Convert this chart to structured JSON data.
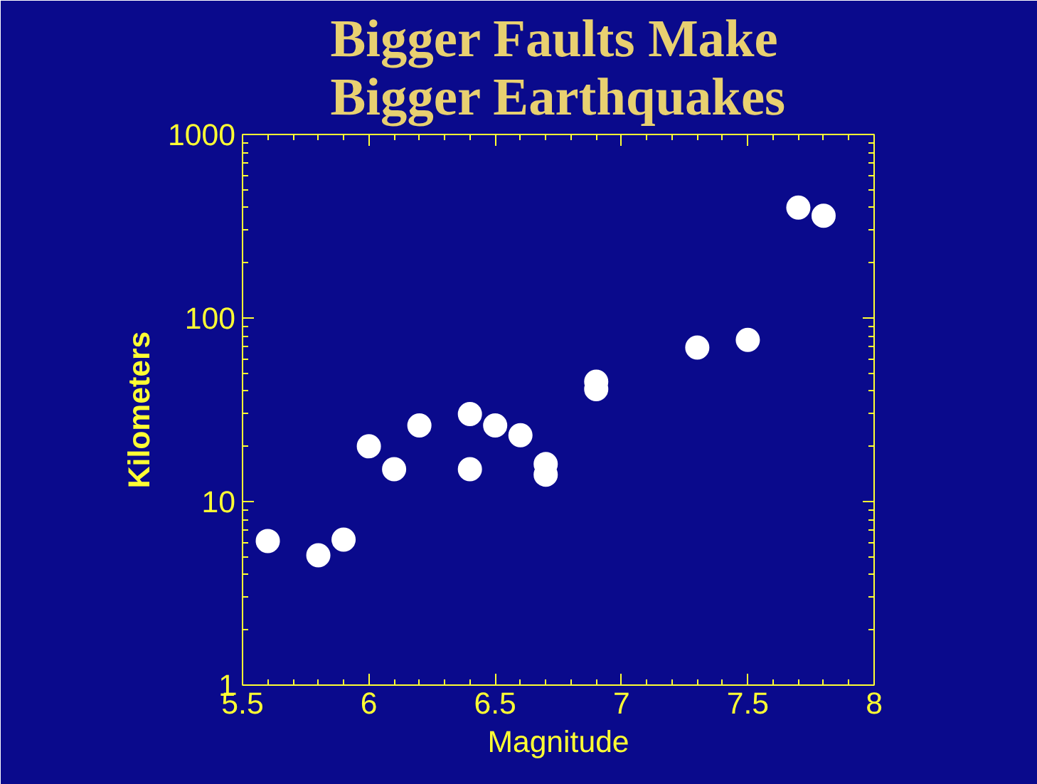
{
  "chart_data": {
    "type": "scatter",
    "title": "Bigger Faults Make Bigger Earthquakes",
    "xlabel": "Magnitude",
    "ylabel": "Kilometers",
    "x": [
      5.6,
      5.8,
      5.9,
      6.0,
      6.1,
      6.2,
      6.4,
      6.4,
      6.5,
      6.6,
      6.7,
      6.7,
      6.9,
      6.9,
      7.3,
      7.5,
      7.7,
      7.8
    ],
    "series": [
      {
        "color": "#ffffff",
        "values": [
          6.1,
          5.1,
          6.2,
          20,
          15,
          26,
          30,
          15,
          26,
          23,
          16,
          14,
          45,
          41,
          69,
          76,
          400,
          361
        ]
      }
    ],
    "marker": "circle",
    "log": "y",
    "xlim": [
      5.5,
      8
    ],
    "ylim": [
      1,
      1000
    ],
    "xticks": [
      5.5,
      6,
      6.5,
      7,
      7.5,
      8
    ],
    "yticks": [
      1,
      10,
      100,
      1000
    ],
    "grid": false
  }
}
